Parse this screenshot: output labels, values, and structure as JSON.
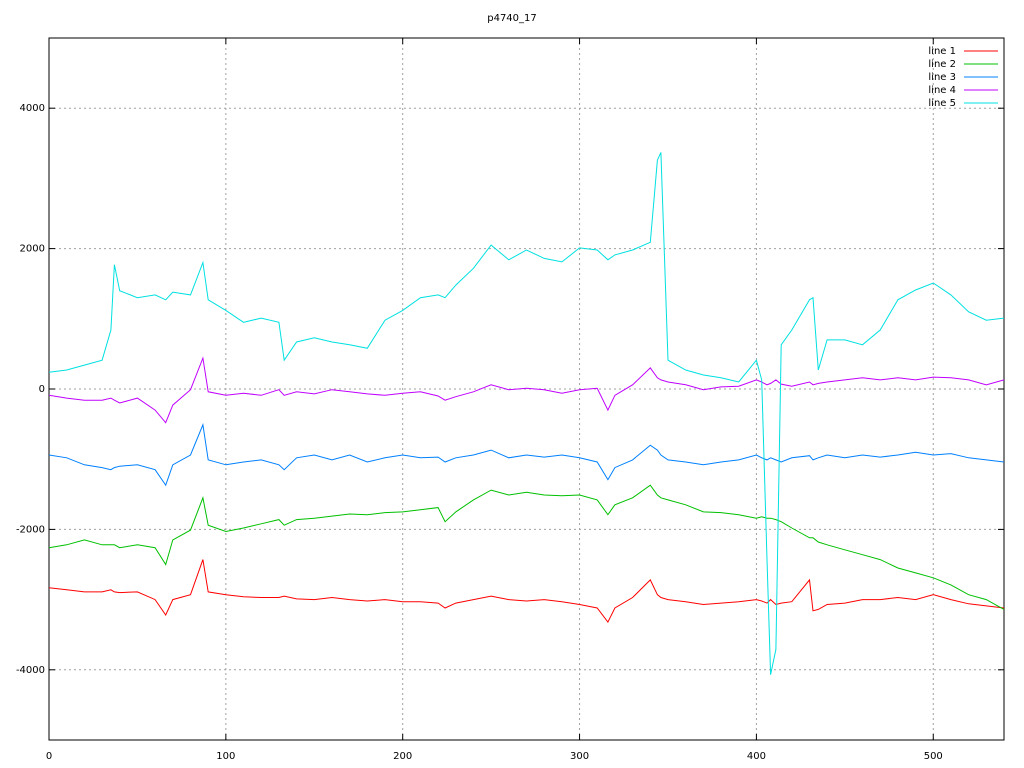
{
  "chart_data": {
    "type": "line",
    "title": "p4740_17",
    "x": [
      0,
      10,
      20,
      30,
      35,
      37,
      40,
      50,
      60,
      66,
      70,
      80,
      87,
      90,
      100,
      110,
      120,
      130,
      133,
      140,
      150,
      160,
      170,
      180,
      190,
      200,
      210,
      220,
      224,
      230,
      240,
      250,
      260,
      270,
      280,
      290,
      300,
      310,
      316,
      320,
      330,
      340,
      344,
      346,
      350,
      360,
      370,
      380,
      390,
      400,
      403,
      406,
      408,
      411,
      414,
      420,
      430,
      432,
      435,
      440,
      450,
      460,
      470,
      480,
      490,
      500,
      510,
      520,
      530,
      540
    ],
    "series": [
      {
        "name": "line 1",
        "color": "#ff0000",
        "values": [
          -2830,
          -2860,
          -2890,
          -2890,
          -2860,
          -2890,
          -2900,
          -2890,
          -3000,
          -3220,
          -3000,
          -2930,
          -2430,
          -2890,
          -2930,
          -2960,
          -2970,
          -2970,
          -2950,
          -2990,
          -3000,
          -2970,
          -3000,
          -3020,
          -3000,
          -3030,
          -3030,
          -3050,
          -3120,
          -3050,
          -3000,
          -2950,
          -3000,
          -3020,
          -3000,
          -3030,
          -3070,
          -3120,
          -3320,
          -3120,
          -2970,
          -2720,
          -2930,
          -2970,
          -3000,
          -3030,
          -3070,
          -3050,
          -3030,
          -3000,
          -3020,
          -3050,
          -3000,
          -3070,
          -3050,
          -3030,
          -2720,
          -3160,
          -3140,
          -3070,
          -3050,
          -3000,
          -3000,
          -2970,
          -3000,
          -2930,
          -3000,
          -3060,
          -3090,
          -3120
        ]
      },
      {
        "name": "line 2",
        "color": "#00c000",
        "values": [
          -2260,
          -2220,
          -2150,
          -2220,
          -2220,
          -2220,
          -2260,
          -2220,
          -2260,
          -2500,
          -2150,
          -2010,
          -1550,
          -1940,
          -2030,
          -1980,
          -1920,
          -1860,
          -1940,
          -1860,
          -1840,
          -1810,
          -1780,
          -1790,
          -1760,
          -1750,
          -1720,
          -1690,
          -1890,
          -1750,
          -1580,
          -1440,
          -1510,
          -1470,
          -1510,
          -1520,
          -1510,
          -1580,
          -1790,
          -1650,
          -1550,
          -1370,
          -1510,
          -1550,
          -1580,
          -1650,
          -1750,
          -1760,
          -1790,
          -1840,
          -1820,
          -1840,
          -1840,
          -1860,
          -1890,
          -1980,
          -2120,
          -2120,
          -2180,
          -2220,
          -2290,
          -2360,
          -2430,
          -2550,
          -2620,
          -2690,
          -2790,
          -2930,
          -3000,
          -3140
        ]
      },
      {
        "name": "line 3",
        "color": "#0080ff",
        "values": [
          -940,
          -980,
          -1080,
          -1120,
          -1150,
          -1120,
          -1100,
          -1080,
          -1150,
          -1370,
          -1080,
          -940,
          -510,
          -1010,
          -1080,
          -1040,
          -1010,
          -1080,
          -1150,
          -980,
          -940,
          -1010,
          -940,
          -1040,
          -980,
          -940,
          -980,
          -970,
          -1040,
          -980,
          -940,
          -870,
          -980,
          -940,
          -970,
          -940,
          -980,
          -1040,
          -1290,
          -1120,
          -1010,
          -800,
          -870,
          -940,
          -1010,
          -1040,
          -1080,
          -1040,
          -1010,
          -940,
          -980,
          -1010,
          -980,
          -1010,
          -1040,
          -980,
          -950,
          -1010,
          -980,
          -940,
          -980,
          -940,
          -970,
          -940,
          -900,
          -940,
          -920,
          -980,
          -1010,
          -1040
        ]
      },
      {
        "name": "line 4",
        "color": "#c000ff",
        "values": [
          -90,
          -130,
          -160,
          -160,
          -130,
          -160,
          -200,
          -130,
          -300,
          -480,
          -230,
          -10,
          440,
          -40,
          -90,
          -60,
          -90,
          -10,
          -90,
          -40,
          -70,
          -10,
          -40,
          -70,
          -90,
          -60,
          -40,
          -100,
          -160,
          -110,
          -40,
          60,
          -10,
          10,
          -10,
          -60,
          -10,
          10,
          -300,
          -90,
          60,
          300,
          160,
          130,
          100,
          60,
          -10,
          30,
          40,
          130,
          100,
          60,
          80,
          130,
          70,
          40,
          100,
          60,
          80,
          100,
          130,
          160,
          130,
          160,
          130,
          170,
          160,
          130,
          60,
          130
        ]
      },
      {
        "name": "line 5",
        "color": "#00e0e0",
        "values": [
          240,
          270,
          340,
          410,
          840,
          1770,
          1400,
          1300,
          1340,
          1270,
          1380,
          1340,
          1800,
          1270,
          1120,
          950,
          1010,
          950,
          410,
          670,
          730,
          670,
          630,
          580,
          980,
          1120,
          1300,
          1340,
          1300,
          1480,
          1720,
          2050,
          1840,
          1980,
          1860,
          1810,
          2010,
          1980,
          1840,
          1910,
          1980,
          2090,
          3260,
          3370,
          410,
          270,
          200,
          160,
          100,
          410,
          130,
          -2430,
          -4070,
          -3710,
          630,
          840,
          1270,
          1300,
          270,
          700,
          700,
          630,
          840,
          1270,
          1410,
          1510,
          1340,
          1100,
          980,
          1010
        ]
      }
    ],
    "xlim": [
      0,
      540
    ],
    "ylim": [
      -5000,
      5000
    ],
    "xticks": [
      0,
      100,
      200,
      300,
      400,
      500
    ],
    "yticks": [
      -4000,
      -2000,
      0,
      2000,
      4000
    ],
    "grid": true,
    "legend": "top-right"
  }
}
